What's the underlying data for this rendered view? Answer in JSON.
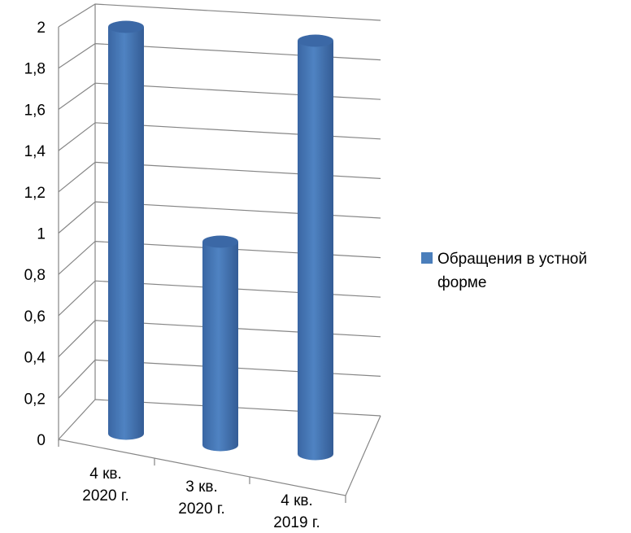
{
  "chart_data": {
    "type": "bar",
    "style": "3d-cylinder",
    "categories": [
      [
        "4 кв.",
        "2020 г."
      ],
      [
        "3 кв.",
        "2020 г."
      ],
      [
        "4 кв.",
        "2019 г."
      ]
    ],
    "series": [
      {
        "name": "Обращения в устной форме",
        "values": [
          2,
          1,
          2
        ],
        "color": "#4a7ebb"
      }
    ],
    "yticks": [
      "0",
      "0,2",
      "0,4",
      "0,6",
      "0,8",
      "1",
      "1,2",
      "1,4",
      "1,6",
      "1,8",
      "2"
    ],
    "ylim": [
      0,
      2
    ],
    "grid": true,
    "legend": {
      "position": "right",
      "lines": [
        "Обращения в устной",
        "форме"
      ]
    }
  }
}
